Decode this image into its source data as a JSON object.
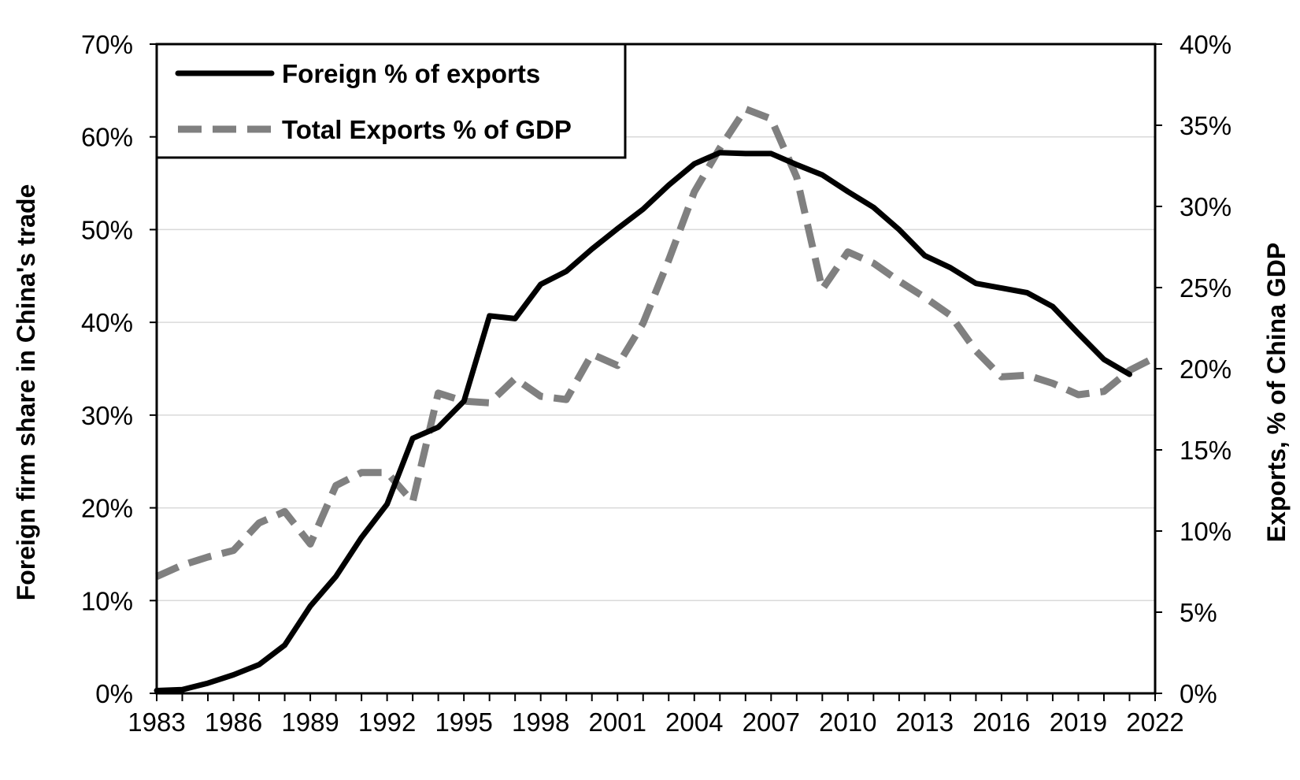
{
  "chart_data": {
    "type": "line",
    "xlabel": "",
    "ylabel": "Foreign firm share in China's trade",
    "y2label": "Exports, % of China GDP",
    "xlim": [
      1983,
      2022
    ],
    "ylim": [
      0,
      70
    ],
    "y2lim": [
      0,
      40
    ],
    "x_ticks": [
      "1983",
      "1986",
      "1989",
      "1992",
      "1995",
      "1998",
      "2001",
      "2004",
      "2007",
      "2010",
      "2013",
      "2016",
      "2019",
      "2022"
    ],
    "y_ticks": [
      "0%",
      "10%",
      "20%",
      "30%",
      "40%",
      "50%",
      "60%",
      "70%"
    ],
    "y2_ticks": [
      "0%",
      "5%",
      "10%",
      "15%",
      "20%",
      "25%",
      "30%",
      "35%",
      "40%"
    ],
    "grid": true,
    "legend_position": "top-left",
    "colors": {
      "foreign": "#000000",
      "exports": "#808080",
      "grid": "#d9d9d9"
    },
    "series": [
      {
        "name": "Foreign % of exports",
        "axis": "left",
        "style": "solid",
        "x": [
          1983,
          1984,
          1985,
          1986,
          1987,
          1988,
          1989,
          1990,
          1991,
          1992,
          1993,
          1994,
          1995,
          1996,
          1997,
          1998,
          1999,
          2000,
          2001,
          2002,
          2003,
          2004,
          2005,
          2006,
          2007,
          2008,
          2009,
          2010,
          2011,
          2012,
          2013,
          2014,
          2015,
          2016,
          2017,
          2018,
          2019,
          2020,
          2021
        ],
        "values": [
          0.3,
          0.4,
          1.1,
          2.0,
          3.1,
          5.2,
          9.4,
          12.6,
          16.8,
          20.4,
          27.5,
          28.7,
          31.5,
          40.7,
          40.4,
          44.1,
          45.5,
          47.9,
          50.1,
          52.2,
          54.8,
          57.1,
          58.3,
          58.2,
          58.2,
          57.0,
          55.9,
          54.1,
          52.4,
          50.0,
          47.2,
          45.9,
          44.2,
          43.7,
          43.2,
          41.7,
          38.8,
          36.0,
          34.4
        ]
      },
      {
        "name": "Total Exports % of GDP",
        "axis": "right",
        "style": "dashed",
        "x": [
          1983,
          1984,
          1985,
          1986,
          1987,
          1988,
          1989,
          1990,
          1991,
          1992,
          1993,
          1994,
          1995,
          1996,
          1997,
          1998,
          1999,
          2000,
          2001,
          2002,
          2003,
          2004,
          2005,
          2006,
          2007,
          2008,
          2009,
          2010,
          2011,
          2012,
          2013,
          2014,
          2015,
          2016,
          2017,
          2018,
          2019,
          2020,
          2021,
          2022
        ],
        "values": [
          7.2,
          7.9,
          8.4,
          8.8,
          10.5,
          11.2,
          9.2,
          12.8,
          13.6,
          13.6,
          11.8,
          18.5,
          18.0,
          17.9,
          19.4,
          18.3,
          18.1,
          20.9,
          20.2,
          22.8,
          26.7,
          30.9,
          33.6,
          36.0,
          35.4,
          31.8,
          24.9,
          27.2,
          26.5,
          25.4,
          24.4,
          23.3,
          21.1,
          19.5,
          19.6,
          19.1,
          18.4,
          18.6,
          19.9,
          20.7
        ]
      }
    ]
  }
}
